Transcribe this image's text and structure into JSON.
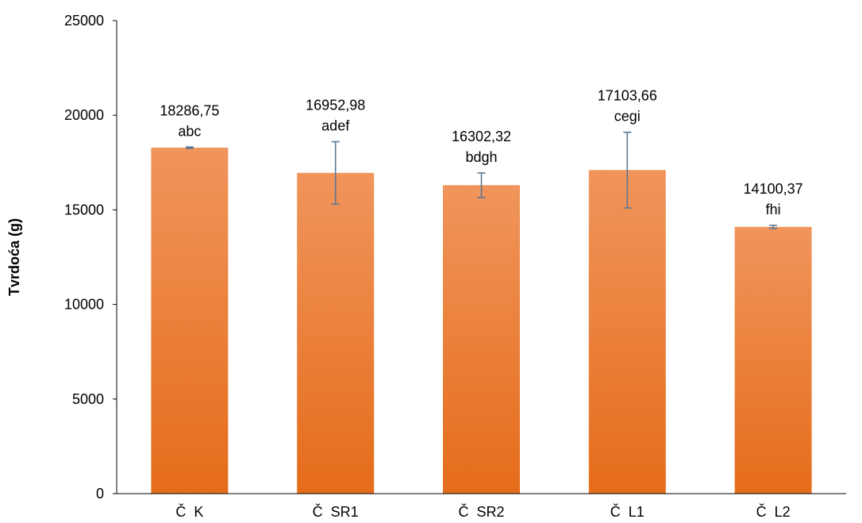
{
  "chart_data": {
    "type": "bar",
    "title": "",
    "xlabel": "",
    "ylabel": "Tvrdoća (g)",
    "ylim": [
      0,
      25000
    ],
    "yticks": [
      0,
      5000,
      10000,
      15000,
      20000,
      25000
    ],
    "ytick_labels": [
      "0",
      "5000",
      "10000",
      "15000",
      "20000",
      "25000"
    ],
    "categories": [
      "Č  K",
      "Č  SR1",
      "Č  SR2",
      "Č  L1",
      "Č  L2"
    ],
    "values": [
      18286.75,
      16952.98,
      16302.32,
      17103.66,
      14100.37
    ],
    "value_labels": [
      "18286,75",
      "16952,98",
      "16302,32",
      "17103,66",
      "14100,37"
    ],
    "letter_labels": [
      "abc",
      "adef",
      "bdgh",
      "cegi",
      "fhi"
    ],
    "error_lows": [
      18250,
      15300,
      15650,
      15100,
      14020
    ],
    "error_highs": [
      18320,
      18600,
      16950,
      19100,
      14180
    ],
    "grid": false,
    "legend": "none",
    "colors": {
      "bar_top": "#F0955C",
      "bar_bottom": "#E56C1A",
      "error_bar": "#5B7794",
      "axis": "#000000"
    }
  }
}
